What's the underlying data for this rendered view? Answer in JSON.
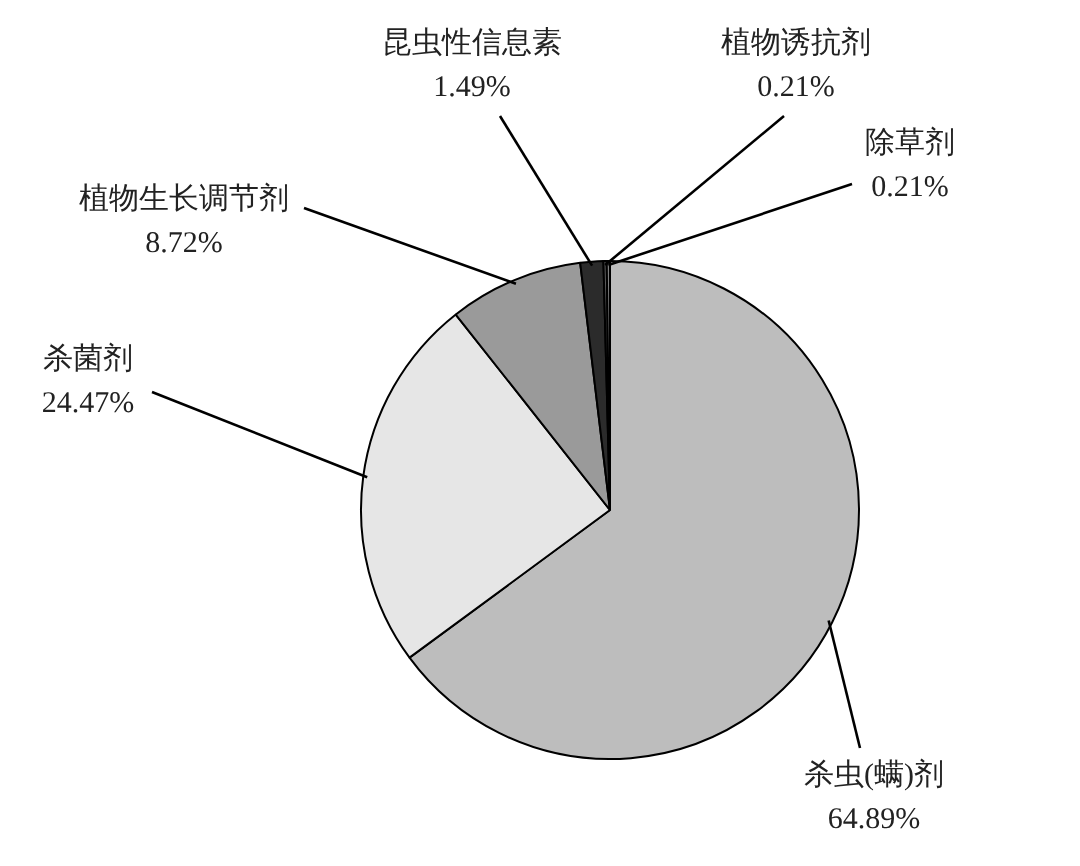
{
  "chart_data": {
    "type": "pie",
    "categories": [
      "杀虫(螨)剂",
      "杀菌剂",
      "植物生长调节剂",
      "昆虫性信息素",
      "植物诱抗剂",
      "除草剂"
    ],
    "values": [
      64.89,
      24.47,
      8.72,
      1.49,
      0.21,
      0.21
    ],
    "value_labels": [
      "64.89%",
      "24.47%",
      "8.72%",
      "1.49%",
      "0.21%",
      "0.21%"
    ],
    "colors": [
      "#bdbdbd",
      "#e6e6e6",
      "#9a9a9a",
      "#2b2b2b",
      "#5a5a5a",
      "#808080"
    ]
  }
}
